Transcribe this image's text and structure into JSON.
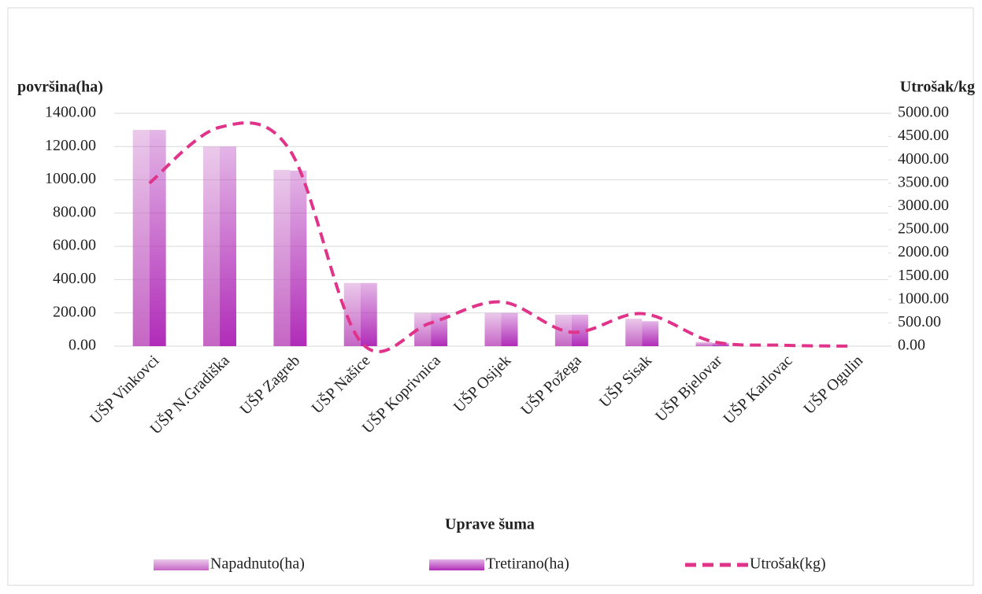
{
  "chart_data": {
    "type": "bar-line",
    "xlabel": "Uprave šuma",
    "ylabel": "površina(ha)",
    "y2label": "Utrošak/kg",
    "categories": [
      "UŠP Vinkovci",
      "UŠP N.Gradiška",
      "UŠP Zagreb",
      "UŠP Našice",
      "UŠP Koprivnica",
      "UŠP Osijek",
      "UŠP Požega",
      "UŠP Sisak",
      "UŠP Bjelovar",
      "UŠP Karlovac",
      "UŠP Ogulin"
    ],
    "series": [
      {
        "name": "Napadnuto(ha)",
        "type": "bar",
        "color": "#c566c5",
        "values": [
          1300,
          1200,
          1060,
          380,
          200,
          200,
          190,
          165,
          25,
          0,
          0
        ]
      },
      {
        "name": "Tretirano(ha)",
        "type": "bar",
        "color": "#b02cb8",
        "values": [
          1300,
          1200,
          1055,
          380,
          200,
          200,
          190,
          150,
          20,
          0,
          0
        ]
      },
      {
        "name": "Utrošak(kg)",
        "type": "line",
        "axis": "y2",
        "color": "#e0338a",
        "values": [
          3500,
          4700,
          4200,
          100,
          500,
          950,
          300,
          700,
          100,
          20,
          0
        ]
      }
    ],
    "ylim": [
      0,
      1400
    ],
    "yticks": [
      {
        "value": 0,
        "label": "0.00"
      },
      {
        "value": 200,
        "label": "200.00"
      },
      {
        "value": 400,
        "label": "400.00"
      },
      {
        "value": 600,
        "label": "600.00"
      },
      {
        "value": 800,
        "label": "800.00"
      },
      {
        "value": 1000,
        "label": "1000.00"
      },
      {
        "value": 1200,
        "label": "1200.00"
      },
      {
        "value": 1400,
        "label": "1400.00"
      }
    ],
    "y2lim": [
      0,
      5000
    ],
    "y2ticks": [
      {
        "value": 0,
        "label": "0.00"
      },
      {
        "value": 500,
        "label": "500.00"
      },
      {
        "value": 1000,
        "label": "1000.00"
      },
      {
        "value": 1500,
        "label": "1500.00"
      },
      {
        "value": 2000,
        "label": "2000.00"
      },
      {
        "value": 2500,
        "label": "2500.00"
      },
      {
        "value": 3000,
        "label": "3000.00"
      },
      {
        "value": 3500,
        "label": "3500.00"
      },
      {
        "value": 4000,
        "label": "4000.00"
      },
      {
        "value": 4500,
        "label": "4500.00"
      },
      {
        "value": 5000,
        "label": "5000.00"
      }
    ],
    "grid": true
  }
}
